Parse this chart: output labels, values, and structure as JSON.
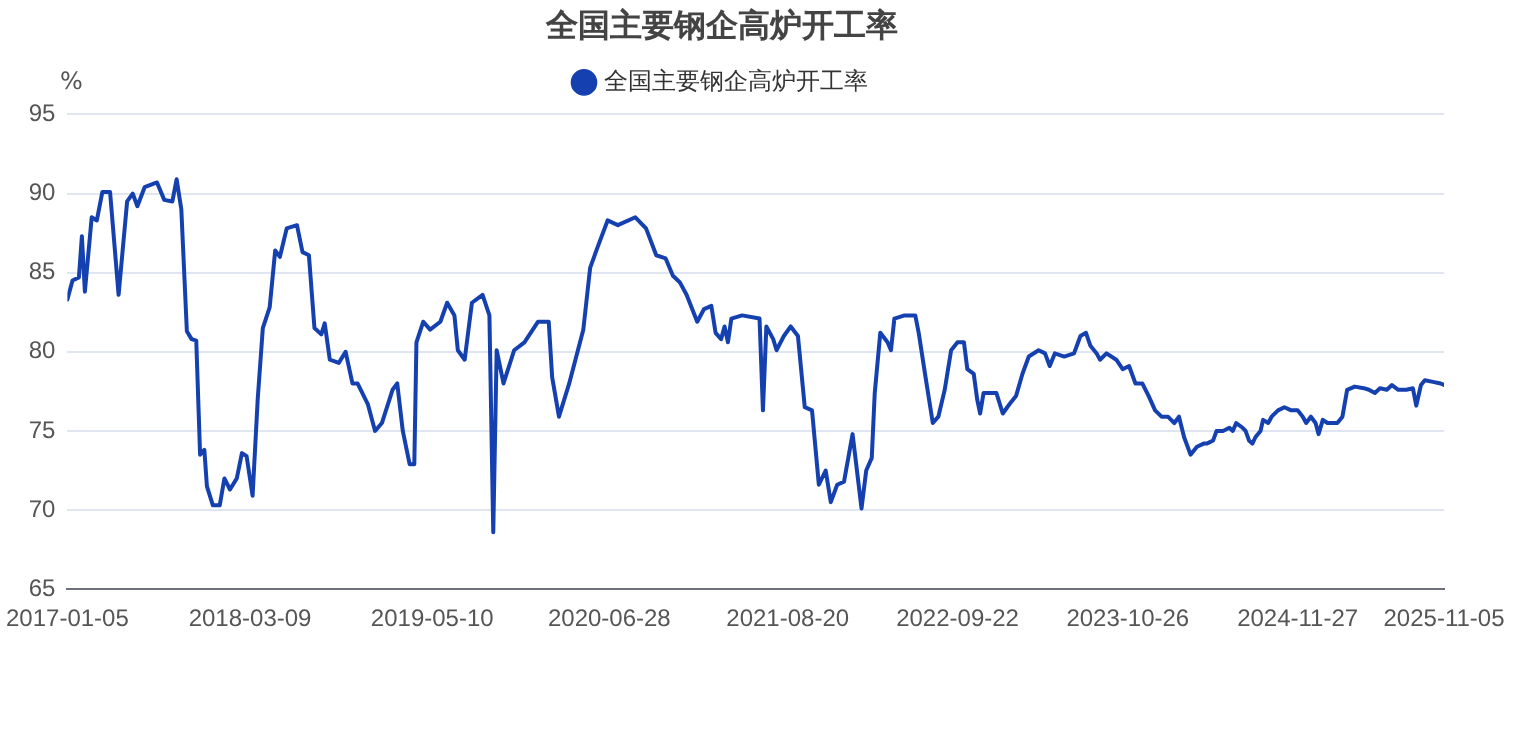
{
  "chart_data": {
    "type": "line",
    "title": "全国主要钢企高炉开工率",
    "ylabel": "%",
    "legend": "top",
    "grid": "y",
    "xlim": [
      "2017-01-05",
      "2025-11-05"
    ],
    "xticks": [
      "2017-01-05",
      "2018-03-09",
      "2019-05-10",
      "2020-06-28",
      "2021-08-20",
      "2022-09-22",
      "2023-10-26",
      "2024-11-27",
      "2025-11-05"
    ],
    "ylim": [
      65,
      95
    ],
    "yticks": [
      65,
      70,
      75,
      80,
      85,
      90,
      95
    ],
    "series": [
      {
        "name": "全国主要钢企高炉开工率",
        "color": "#1540b0",
        "x": [
          "2017-01-05",
          "2017-01-17",
          "2017-02-01",
          "2017-02-08",
          "2017-02-15",
          "2017-03-03",
          "2017-03-15",
          "2017-03-28",
          "2017-04-15",
          "2017-05-05",
          "2017-05-25",
          "2017-06-07",
          "2017-06-18",
          "2017-07-05",
          "2017-08-03",
          "2017-08-20",
          "2017-09-08",
          "2017-09-18",
          "2017-09-29",
          "2017-10-12",
          "2017-10-23",
          "2017-11-03",
          "2017-11-12",
          "2017-11-22",
          "2017-11-28",
          "2017-12-12",
          "2017-12-28",
          "2018-01-08",
          "2018-01-21",
          "2018-02-06",
          "2018-02-18",
          "2018-03-01",
          "2018-03-15",
          "2018-03-27",
          "2018-04-08",
          "2018-04-24",
          "2018-05-07",
          "2018-05-18",
          "2018-06-03",
          "2018-06-27",
          "2018-07-10",
          "2018-07-25",
          "2018-08-07",
          "2018-08-23",
          "2018-08-31",
          "2018-09-12",
          "2018-10-03",
          "2018-10-19",
          "2018-11-04",
          "2018-11-16",
          "2018-12-10",
          "2018-12-27",
          "2019-01-12",
          "2019-02-06",
          "2019-02-17",
          "2019-03-02",
          "2019-03-18",
          "2019-03-29",
          "2019-04-03",
          "2019-04-19",
          "2019-05-05",
          "2019-05-29",
          "2019-06-14",
          "2019-07-01",
          "2019-07-09",
          "2019-07-25",
          "2019-08-11",
          "2019-09-05",
          "2019-09-21",
          "2019-09-30",
          "2019-10-08",
          "2019-10-24",
          "2019-11-18",
          "2019-12-12",
          "2020-01-13",
          "2020-02-07",
          "2020-02-15",
          "2020-03-02",
          "2020-03-26",
          "2020-04-28",
          "2020-05-14",
          "2020-05-30",
          "2020-06-24",
          "2020-07-18",
          "2020-08-28",
          "2020-09-22",
          "2020-10-16",
          "2020-11-07",
          "2020-11-24",
          "2020-12-10",
          "2020-12-26",
          "2021-01-20",
          "2021-02-05",
          "2021-02-22",
          "2021-03-04",
          "2021-03-17",
          "2021-03-25",
          "2021-04-02",
          "2021-04-10",
          "2021-05-05",
          "2021-06-15",
          "2021-06-23",
          "2021-07-01",
          "2021-07-17",
          "2021-07-25",
          "2021-08-11",
          "2021-08-27",
          "2021-09-13",
          "2021-09-29",
          "2021-10-16",
          "2021-11-01",
          "2021-11-17",
          "2021-11-29",
          "2021-12-14",
          "2021-12-30",
          "2022-01-19",
          "2022-02-09",
          "2022-02-20",
          "2022-03-05",
          "2022-03-12",
          "2022-03-25",
          "2022-04-11",
          "2022-04-19",
          "2022-04-27",
          "2022-05-21",
          "2022-06-15",
          "2022-06-23",
          "2022-07-09",
          "2022-07-26",
          "2022-08-08",
          "2022-08-23",
          "2022-09-07",
          "2022-09-22",
          "2022-10-07",
          "2022-10-15",
          "2022-10-30",
          "2022-11-07",
          "2022-11-14",
          "2022-11-22",
          "2022-12-07",
          "2022-12-22",
          "2023-01-06",
          "2023-01-22",
          "2023-02-06",
          "2023-02-21",
          "2023-03-08",
          "2023-03-31",
          "2023-04-15",
          "2023-04-26",
          "2023-05-08",
          "2023-05-30",
          "2023-06-22",
          "2023-07-07",
          "2023-07-20",
          "2023-07-30",
          "2023-08-14",
          "2023-08-22",
          "2023-09-06",
          "2023-09-29",
          "2023-10-14",
          "2023-10-29",
          "2023-11-13",
          "2023-11-29",
          "2023-12-14",
          "2023-12-29",
          "2024-01-13",
          "2024-01-28",
          "2024-02-12",
          "2024-02-23",
          "2024-03-06",
          "2024-03-21",
          "2024-04-05",
          "2024-04-21",
          "2024-04-28",
          "2024-05-13",
          "2024-05-21",
          "2024-06-05",
          "2024-06-20",
          "2024-06-28",
          "2024-07-06",
          "2024-07-21",
          "2024-07-28",
          "2024-08-05",
          "2024-08-13",
          "2024-08-20",
          "2024-09-01",
          "2024-09-07",
          "2024-09-19",
          "2024-09-27",
          "2024-10-12",
          "2024-10-27",
          "2024-11-12",
          "2024-11-27",
          "2024-12-09",
          "2024-12-17",
          "2024-12-28",
          "2025-01-08",
          "2025-01-15",
          "2025-01-25",
          "2025-02-05",
          "2025-02-28",
          "2025-03-12",
          "2025-03-23",
          "2025-04-10",
          "2025-05-01",
          "2025-05-13",
          "2025-05-27",
          "2025-06-08",
          "2025-06-24",
          "2025-07-06",
          "2025-07-21",
          "2025-08-09",
          "2025-08-24",
          "2025-09-01",
          "2025-09-12",
          "2025-09-21",
          "2025-10-10",
          "2025-10-28",
          "2025-11-05"
        ],
        "values": [
          83.3,
          84.5,
          84.7,
          87.3,
          83.8,
          88.5,
          88.3,
          90.1,
          90.1,
          83.6,
          89.5,
          90,
          89.2,
          90.4,
          90.7,
          89.6,
          89.5,
          90.9,
          89,
          81.3,
          80.8,
          80.7,
          73.5,
          73.8,
          71.5,
          70.3,
          70.3,
          72,
          71.3,
          72,
          73.6,
          73.4,
          70.9,
          77,
          81.5,
          82.8,
          86.4,
          86,
          87.8,
          88,
          86.3,
          86.1,
          81.5,
          81.1,
          81.8,
          79.5,
          79.3,
          80,
          78,
          78,
          76.7,
          75,
          75.5,
          77.6,
          78,
          75,
          72.9,
          72.9,
          80.6,
          81.9,
          81.4,
          81.9,
          83.1,
          82.3,
          80.1,
          79.5,
          83.1,
          83.6,
          82.3,
          68.6,
          80.1,
          78,
          80.1,
          80.6,
          81.9,
          81.9,
          78.4,
          75.9,
          78,
          81.4,
          85.3,
          86.5,
          88.3,
          88,
          88.5,
          87.8,
          86.1,
          85.9,
          84.8,
          84.4,
          83.6,
          81.9,
          82.7,
          82.9,
          81.2,
          80.8,
          81.6,
          80.6,
          82.1,
          82.3,
          82.1,
          76.3,
          81.6,
          80.8,
          80.1,
          81,
          81.6,
          81,
          76.5,
          76.3,
          71.6,
          72.5,
          70.5,
          71.6,
          71.8,
          74.8,
          70.1,
          72.5,
          73.3,
          77.4,
          81.2,
          80.6,
          80.1,
          82.1,
          82.3,
          82.3,
          81.2,
          78.4,
          75.5,
          75.9,
          77.6,
          80.1,
          80.6,
          80.6,
          78.9,
          78.6,
          77,
          76.1,
          77.4,
          77.4,
          77.4,
          76.1,
          76.7,
          77.2,
          78.6,
          79.7,
          80.1,
          79.9,
          79.1,
          79.9,
          79.7,
          79.9,
          81,
          81.2,
          80.4,
          79.9,
          79.5,
          79.9,
          79.5,
          78.9,
          79.1,
          78,
          78,
          77.2,
          76.3,
          75.9,
          75.9,
          75.5,
          75.9,
          74.6,
          73.5,
          74,
          74.2,
          74.2,
          74.4,
          75,
          75,
          75.2,
          75,
          75.5,
          75.2,
          75,
          74.4,
          74.2,
          74.6,
          75,
          75.7,
          75.5,
          75.9,
          76.3,
          76.5,
          76.3,
          76.3,
          75.9,
          75.5,
          75.9,
          75.5,
          74.8,
          75.7,
          75.5,
          75.5,
          75.9,
          77.6,
          77.8,
          77.7,
          77.6,
          77.4,
          77.7,
          77.6,
          77.9,
          77.6,
          77.6,
          77.7,
          76.6,
          77.9,
          78.2,
          78.1,
          78,
          77.9
        ]
      }
    ]
  }
}
